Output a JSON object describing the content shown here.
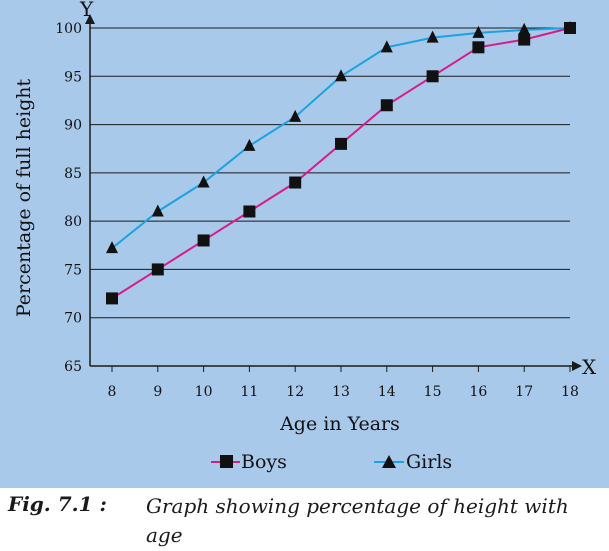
{
  "chart_data": {
    "type": "line",
    "title": "",
    "xlabel": "Age in Years",
    "ylabel": "Percentage of full height",
    "x_axis_letter": "X",
    "y_axis_letter": "Y",
    "x": [
      8,
      9,
      10,
      11,
      12,
      13,
      14,
      15,
      16,
      17,
      18
    ],
    "x_ticks": [
      "8",
      "9",
      "10",
      "11",
      "12",
      "13",
      "14",
      "15",
      "16",
      "17",
      "18"
    ],
    "y_ticks": [
      "65",
      "70",
      "75",
      "80",
      "85",
      "90",
      "95",
      "100"
    ],
    "ylim": [
      65,
      100
    ],
    "xlim": [
      8,
      18
    ],
    "grid": "horizontal",
    "legend_placement": "bottom",
    "series": [
      {
        "name": "Boys",
        "marker": "square",
        "color": "#d81b8c",
        "values": [
          72,
          75,
          78,
          81,
          84,
          88,
          92,
          95,
          98,
          98.8,
          100
        ]
      },
      {
        "name": "Girls",
        "marker": "triangle",
        "color": "#1aa3e0",
        "values": [
          77.2,
          81,
          84,
          87.8,
          90.8,
          95,
          98,
          99,
          99.5,
          99.8,
          100
        ]
      }
    ]
  },
  "caption": {
    "label": "Fig. 7.1 :",
    "text": "Graph showing percentage of height with age"
  }
}
